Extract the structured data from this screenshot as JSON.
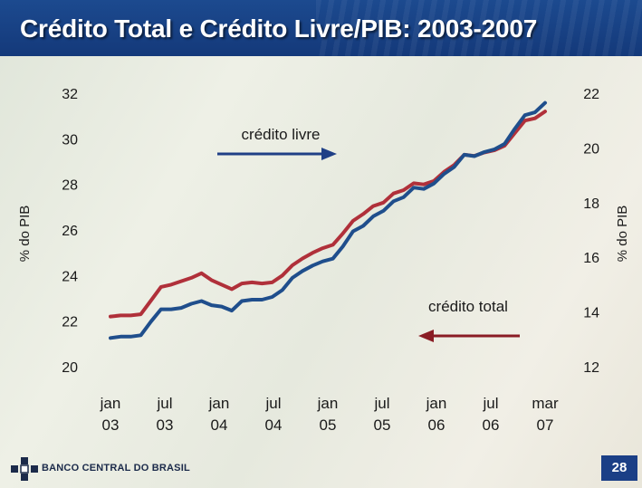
{
  "header": {
    "title": "Crédito Total e Crédito Livre/PIB: 2003-2007"
  },
  "footer": {
    "logo_text": "BANCO CENTRAL DO BRASIL",
    "page_number": "28"
  },
  "colors": {
    "title_bar": "#1b4a90",
    "credito_total": "#b0303a",
    "credito_livre": "#1f4e8c",
    "arrow_livre": "#1f3f86",
    "arrow_total": "#8a1c24"
  },
  "chart_data": {
    "type": "line",
    "title": "",
    "y_left": {
      "label": "% do PIB",
      "ticks": [
        "32",
        "30",
        "28",
        "26",
        "24",
        "22",
        "20"
      ],
      "range": [
        20,
        32
      ]
    },
    "y_right": {
      "label": "% do PIB",
      "ticks": [
        "22",
        "20",
        "18",
        "16",
        "14",
        "12"
      ],
      "range": [
        12,
        22
      ]
    },
    "x_ticks": [
      {
        "line1": "jan",
        "line2": "03"
      },
      {
        "line1": "jul",
        "line2": "03"
      },
      {
        "line1": "jan",
        "line2": "04"
      },
      {
        "line1": "jul",
        "line2": "04"
      },
      {
        "line1": "jan",
        "line2": "05"
      },
      {
        "line1": "jul",
        "line2": "05"
      },
      {
        "line1": "jan",
        "line2": "06"
      },
      {
        "line1": "jul",
        "line2": "06"
      },
      {
        "line1": "mar",
        "line2": "07"
      }
    ],
    "annotations": {
      "livre": "crédito livre",
      "total": "crédito total"
    },
    "series": [
      {
        "axis": "left",
        "color": "#b0303a",
        "values": [
          22.2,
          22.25,
          22.25,
          22.3,
          22.9,
          23.5,
          23.6,
          23.75,
          23.9,
          24.1,
          23.8,
          23.6,
          23.4,
          23.65,
          23.7,
          23.65,
          23.7,
          24.0,
          24.45,
          24.75,
          25.0,
          25.2,
          25.35,
          25.85,
          26.4,
          26.7,
          27.05,
          27.2,
          27.6,
          27.75,
          28.05,
          28.0,
          28.15,
          28.55,
          28.85,
          29.3,
          29.25,
          29.4,
          29.5,
          29.7,
          30.25,
          30.8,
          30.9,
          31.2
        ]
      },
      {
        "axis": "right",
        "color": "#1f4e8c",
        "values": [
          13.05,
          13.1,
          13.1,
          13.15,
          13.65,
          14.1,
          14.1,
          14.15,
          14.3,
          14.4,
          14.25,
          14.2,
          14.05,
          14.4,
          14.45,
          14.45,
          14.55,
          14.8,
          15.25,
          15.5,
          15.7,
          15.85,
          15.95,
          16.4,
          16.95,
          17.15,
          17.5,
          17.7,
          18.05,
          18.2,
          18.55,
          18.5,
          18.7,
          19.05,
          19.3,
          19.75,
          19.7,
          19.85,
          19.95,
          20.15,
          20.7,
          21.2,
          21.3,
          21.65
        ]
      }
    ]
  }
}
